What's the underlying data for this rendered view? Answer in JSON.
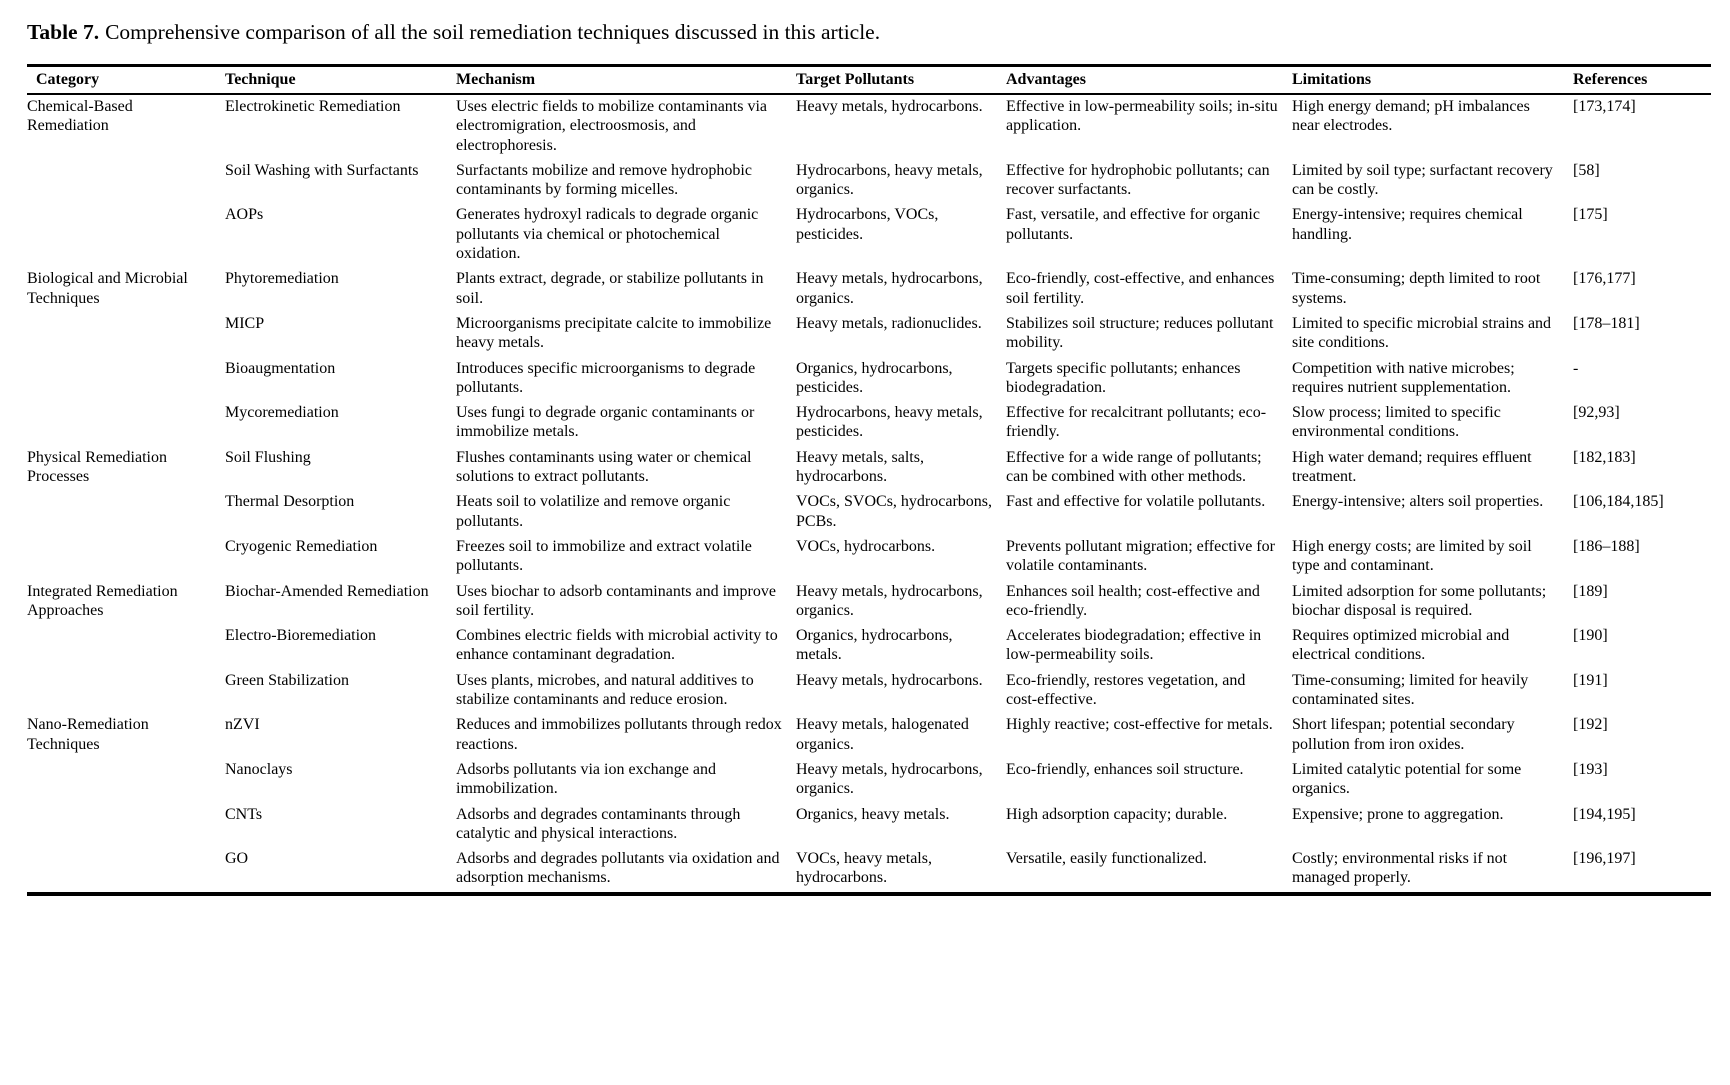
{
  "colors": {
    "background": "#ffffff",
    "text": "#000000",
    "rule": "#000000"
  },
  "caption": {
    "label": "Table 7.",
    "text": "Comprehensive comparison of all the soil remediation techniques discussed in this article."
  },
  "table": {
    "headers": [
      "Category",
      "Technique",
      "Mechanism",
      "Target Pollutants",
      "Advantages",
      "Limitations",
      "References"
    ],
    "groups": [
      {
        "category": "Chemical-Based Remediation",
        "rows": [
          {
            "technique": "Electrokinetic Remediation",
            "mechanism": "Uses electric fields to mobilize contaminants via electromigration, electroosmosis, and electrophoresis.",
            "pollutants": "Heavy metals, hydrocarbons.",
            "advantages": "Effective in low-permeability soils; in-situ application.",
            "limitations": "High energy demand; pH imbalances near electrodes.",
            "references": "[173,174]"
          },
          {
            "technique": "Soil Washing with Surfactants",
            "mechanism": "Surfactants mobilize and remove hydrophobic contaminants by forming micelles.",
            "pollutants": "Hydrocarbons, heavy metals, organics.",
            "advantages": "Effective for hydrophobic pollutants; can recover surfactants.",
            "limitations": "Limited by soil type; surfactant recovery can be costly.",
            "references": "[58]"
          },
          {
            "technique": "AOPs",
            "mechanism": "Generates hydroxyl radicals to degrade organic pollutants via chemical or photochemical oxidation.",
            "pollutants": "Hydrocarbons, VOCs, pesticides.",
            "advantages": "Fast, versatile, and effective for organic pollutants.",
            "limitations": "Energy-intensive; requires chemical handling.",
            "references": "[175]"
          }
        ]
      },
      {
        "category": "Biological and Microbial Techniques",
        "rows": [
          {
            "technique": "Phytoremediation",
            "mechanism": "Plants extract, degrade, or stabilize pollutants in soil.",
            "pollutants": "Heavy metals, hydrocarbons, organics.",
            "advantages": "Eco-friendly, cost-effective, and enhances soil fertility.",
            "limitations": "Time-consuming; depth limited to root systems.",
            "references": "[176,177]"
          },
          {
            "technique": "MICP",
            "mechanism": "Microorganisms precipitate calcite to immobilize heavy metals.",
            "pollutants": "Heavy metals, radionuclides.",
            "advantages": "Stabilizes soil structure; reduces pollutant mobility.",
            "limitations": "Limited to specific microbial strains and site conditions.",
            "references": "[178–181]"
          },
          {
            "technique": "Bioaugmentation",
            "mechanism": "Introduces specific microorganisms to degrade pollutants.",
            "pollutants": "Organics, hydrocarbons, pesticides.",
            "advantages": "Targets specific pollutants; enhances biodegradation.",
            "limitations": "Competition with native microbes; requires nutrient supplementation.",
            "references": "-"
          },
          {
            "technique": "Mycoremediation",
            "mechanism": "Uses fungi to degrade organic contaminants or immobilize metals.",
            "pollutants": "Hydrocarbons, heavy metals, pesticides.",
            "advantages": "Effective for recalcitrant pollutants; eco-friendly.",
            "limitations": "Slow process; limited to specific environmental conditions.",
            "references": "[92,93]"
          }
        ]
      },
      {
        "category": "Physical Remediation Processes",
        "rows": [
          {
            "technique": "Soil Flushing",
            "mechanism": "Flushes contaminants using water or chemical solutions to extract pollutants.",
            "pollutants": "Heavy metals, salts, hydrocarbons.",
            "advantages": "Effective for a wide range of pollutants; can be combined with other methods.",
            "limitations": "High water demand; requires effluent treatment.",
            "references": "[182,183]"
          },
          {
            "technique": "Thermal Desorption",
            "mechanism": "Heats soil to volatilize and remove organic pollutants.",
            "pollutants": "VOCs, SVOCs, hydrocarbons, PCBs.",
            "advantages": "Fast and effective for volatile pollutants.",
            "limitations": "Energy-intensive; alters soil properties.",
            "references": "[106,184,185]"
          },
          {
            "technique": "Cryogenic Remediation",
            "mechanism": "Freezes soil to immobilize and extract volatile pollutants.",
            "pollutants": "VOCs, hydrocarbons.",
            "advantages": "Prevents pollutant migration; effective for volatile contaminants.",
            "limitations": "High energy costs; are limited by soil type and contaminant.",
            "references": "[186–188]"
          }
        ]
      },
      {
        "category": "Integrated Remediation Approaches",
        "rows": [
          {
            "technique": "Biochar-Amended Remediation",
            "mechanism": "Uses biochar to adsorb contaminants and improve soil fertility.",
            "pollutants": "Heavy metals, hydrocarbons, organics.",
            "advantages": "Enhances soil health; cost-effective and eco-friendly.",
            "limitations": "Limited adsorption for some pollutants; biochar disposal is required.",
            "references": "[189]"
          },
          {
            "technique": "Electro-Bioremediation",
            "mechanism": "Combines electric fields with microbial activity to enhance contaminant degradation.",
            "pollutants": "Organics, hydrocarbons, metals.",
            "advantages": "Accelerates biodegradation; effective in low-permeability soils.",
            "limitations": "Requires optimized microbial and electrical conditions.",
            "references": "[190]"
          },
          {
            "technique": "Green Stabilization",
            "mechanism": "Uses plants, microbes, and natural additives to stabilize contaminants and reduce erosion.",
            "pollutants": "Heavy metals, hydrocarbons.",
            "advantages": "Eco-friendly, restores vegetation, and cost-effective.",
            "limitations": "Time-consuming; limited for heavily contaminated sites.",
            "references": "[191]"
          }
        ]
      },
      {
        "category": "Nano-Remediation Techniques",
        "rows": [
          {
            "technique": "nZVI",
            "mechanism": "Reduces and immobilizes pollutants through redox reactions.",
            "pollutants": "Heavy metals, halogenated organics.",
            "advantages": "Highly reactive; cost-effective for metals.",
            "limitations": "Short lifespan; potential secondary pollution from iron oxides.",
            "references": "[192]"
          },
          {
            "technique": "Nanoclays",
            "mechanism": "Adsorbs pollutants via ion exchange and immobilization.",
            "pollutants": "Heavy metals, hydrocarbons, organics.",
            "advantages": "Eco-friendly, enhances soil structure.",
            "limitations": "Limited catalytic potential for some organics.",
            "references": "[193]"
          },
          {
            "technique": "CNTs",
            "mechanism": "Adsorbs and degrades contaminants through catalytic and physical interactions.",
            "pollutants": "Organics, heavy metals.",
            "advantages": "High adsorption capacity; durable.",
            "limitations": "Expensive; prone to aggregation.",
            "references": "[194,195]"
          },
          {
            "technique": "GO",
            "mechanism": "Adsorbs and degrades pollutants via oxidation and adsorption mechanisms.",
            "pollutants": "VOCs, heavy metals, hydrocarbons.",
            "advantages": "Versatile, easily functionalized.",
            "limitations": "Costly; environmental risks if not managed properly.",
            "references": "[196,197]"
          }
        ]
      }
    ]
  }
}
